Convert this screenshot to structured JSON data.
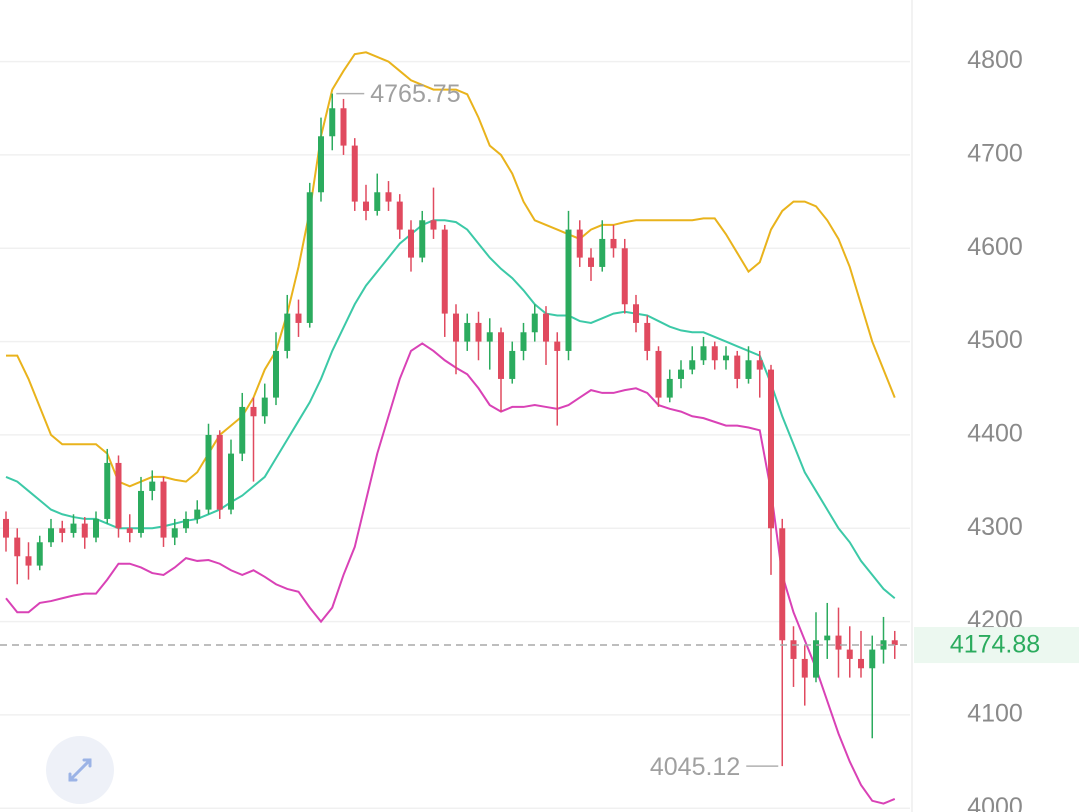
{
  "chart_data": {
    "type": "candlestick",
    "ylim": [
      3996,
      4866
    ],
    "yticks": [
      4000,
      4100,
      4200,
      4300,
      4400,
      4500,
      4600,
      4700,
      4800
    ],
    "grid": true,
    "up_color": "#2bab5e",
    "down_color": "#e04a5f",
    "candles": [
      [
        4310,
        4318,
        4275,
        4290
      ],
      [
        4290,
        4300,
        4240,
        4270
      ],
      [
        4270,
        4285,
        4245,
        4260
      ],
      [
        4260,
        4292,
        4255,
        4285
      ],
      [
        4285,
        4310,
        4280,
        4300
      ],
      [
        4300,
        4308,
        4285,
        4295
      ],
      [
        4295,
        4315,
        4290,
        4305
      ],
      [
        4305,
        4312,
        4278,
        4290
      ],
      [
        4290,
        4318,
        4285,
        4310
      ],
      [
        4310,
        4385,
        4305,
        4370
      ],
      [
        4370,
        4378,
        4290,
        4300
      ],
      [
        4300,
        4315,
        4285,
        4295
      ],
      [
        4295,
        4355,
        4290,
        4340
      ],
      [
        4340,
        4362,
        4330,
        4350
      ],
      [
        4350,
        4355,
        4280,
        4290
      ],
      [
        4290,
        4310,
        4282,
        4300
      ],
      [
        4300,
        4318,
        4295,
        4310
      ],
      [
        4310,
        4330,
        4305,
        4320
      ],
      [
        4320,
        4412,
        4315,
        4400
      ],
      [
        4400,
        4405,
        4310,
        4320
      ],
      [
        4320,
        4395,
        4315,
        4380
      ],
      [
        4380,
        4445,
        4372,
        4430
      ],
      [
        4430,
        4440,
        4350,
        4420
      ],
      [
        4420,
        4455,
        4412,
        4440
      ],
      [
        4440,
        4510,
        4432,
        4490
      ],
      [
        4490,
        4550,
        4482,
        4530
      ],
      [
        4530,
        4545,
        4505,
        4520
      ],
      [
        4520,
        4670,
        4515,
        4660
      ],
      [
        4660,
        4740,
        4650,
        4720
      ],
      [
        4720,
        4765.75,
        4705,
        4750
      ],
      [
        4750,
        4760,
        4700,
        4710
      ],
      [
        4710,
        4718,
        4640,
        4650
      ],
      [
        4650,
        4668,
        4630,
        4640
      ],
      [
        4640,
        4680,
        4635,
        4660
      ],
      [
        4660,
        4672,
        4640,
        4650
      ],
      [
        4650,
        4658,
        4610,
        4620
      ],
      [
        4620,
        4630,
        4575,
        4590
      ],
      [
        4590,
        4640,
        4585,
        4630
      ],
      [
        4630,
        4665,
        4610,
        4620
      ],
      [
        4620,
        4625,
        4505,
        4530
      ],
      [
        4530,
        4540,
        4465,
        4500
      ],
      [
        4500,
        4530,
        4490,
        4520
      ],
      [
        4520,
        4532,
        4480,
        4500
      ],
      [
        4500,
        4525,
        4470,
        4510
      ],
      [
        4510,
        4515,
        4425,
        4460
      ],
      [
        4460,
        4500,
        4455,
        4490
      ],
      [
        4490,
        4520,
        4480,
        4510
      ],
      [
        4510,
        4540,
        4500,
        4530
      ],
      [
        4530,
        4538,
        4475,
        4500
      ],
      [
        4500,
        4510,
        4410,
        4490
      ],
      [
        4490,
        4640,
        4480,
        4620
      ],
      [
        4620,
        4630,
        4580,
        4590
      ],
      [
        4590,
        4600,
        4565,
        4580
      ],
      [
        4580,
        4630,
        4575,
        4610
      ],
      [
        4610,
        4625,
        4590,
        4600
      ],
      [
        4600,
        4610,
        4530,
        4540
      ],
      [
        4540,
        4550,
        4510,
        4520
      ],
      [
        4520,
        4528,
        4480,
        4490
      ],
      [
        4490,
        4495,
        4430,
        4440
      ],
      [
        4440,
        4470,
        4435,
        4460
      ],
      [
        4460,
        4480,
        4450,
        4470
      ],
      [
        4470,
        4495,
        4465,
        4480
      ],
      [
        4480,
        4505,
        4475,
        4495
      ],
      [
        4495,
        4500,
        4470,
        4480
      ],
      [
        4480,
        4495,
        4470,
        4485
      ],
      [
        4485,
        4490,
        4450,
        4460
      ],
      [
        4460,
        4495,
        4455,
        4480
      ],
      [
        4480,
        4490,
        4440,
        4470
      ],
      [
        4470,
        4475,
        4250,
        4300
      ],
      [
        4300,
        4310,
        4045.12,
        4180
      ],
      [
        4180,
        4195,
        4130,
        4160
      ],
      [
        4160,
        4175,
        4110,
        4140
      ],
      [
        4140,
        4210,
        4135,
        4180
      ],
      [
        4180,
        4220,
        4160,
        4185
      ],
      [
        4185,
        4215,
        4140,
        4170
      ],
      [
        4170,
        4195,
        4140,
        4160
      ],
      [
        4160,
        4190,
        4140,
        4150
      ],
      [
        4150,
        4185,
        4075,
        4170
      ],
      [
        4170,
        4205,
        4155,
        4180
      ],
      [
        4180,
        4190,
        4160,
        4174.88
      ]
    ],
    "bands": [
      {
        "color": "#e9b31c",
        "values": [
          4485,
          4485,
          4460,
          4430,
          4400,
          4390,
          4390,
          4390,
          4390,
          4380,
          4350,
          4345,
          4350,
          4355,
          4355,
          4352,
          4350,
          4360,
          4380,
          4400,
          4410,
          4420,
          4440,
          4470,
          4490,
          4530,
          4580,
          4640,
          4720,
          4770,
          4790,
          4808,
          4810,
          4805,
          4800,
          4790,
          4780,
          4775,
          4770,
          4770,
          4770,
          4765,
          4740,
          4710,
          4700,
          4680,
          4650,
          4630,
          4625,
          4620,
          4615,
          4610,
          4620,
          4625,
          4625,
          4628,
          4630,
          4630,
          4630,
          4630,
          4630,
          4630,
          4632,
          4632,
          4615,
          4595,
          4575,
          4585,
          4620,
          4640,
          4650,
          4650,
          4645,
          4630,
          4610,
          4580,
          4540,
          4500,
          4470,
          4440
        ]
      },
      {
        "color": "#3cc9a7",
        "values": [
          4355,
          4350,
          4340,
          4330,
          4320,
          4315,
          4312,
          4310,
          4310,
          4305,
          4300,
          4300,
          4300,
          4300,
          4302,
          4305,
          4308,
          4310,
          4315,
          4320,
          4328,
          4335,
          4345,
          4355,
          4375,
          4395,
          4415,
          4435,
          4460,
          4490,
          4515,
          4540,
          4560,
          4575,
          4590,
          4605,
          4615,
          4625,
          4630,
          4630,
          4628,
          4620,
          4605,
          4590,
          4578,
          4568,
          4555,
          4540,
          4530,
          4528,
          4528,
          4522,
          4520,
          4525,
          4530,
          4532,
          4530,
          4528,
          4522,
          4516,
          4512,
          4510,
          4510,
          4505,
          4500,
          4495,
          4490,
          4485,
          4455,
          4420,
          4390,
          4360,
          4340,
          4320,
          4300,
          4285,
          4265,
          4250,
          4235,
          4225
        ]
      },
      {
        "color": "#d942b6",
        "values": [
          4225,
          4210,
          4210,
          4220,
          4222,
          4225,
          4228,
          4230,
          4230,
          4245,
          4262,
          4262,
          4258,
          4252,
          4250,
          4258,
          4268,
          4265,
          4266,
          4262,
          4255,
          4250,
          4255,
          4248,
          4240,
          4235,
          4232,
          4215,
          4200,
          4215,
          4250,
          4280,
          4330,
          4380,
          4420,
          4460,
          4490,
          4498,
          4490,
          4480,
          4472,
          4465,
          4450,
          4432,
          4425,
          4430,
          4430,
          4432,
          4430,
          4428,
          4432,
          4440,
          4448,
          4445,
          4445,
          4448,
          4450,
          4445,
          4432,
          4428,
          4425,
          4420,
          4418,
          4414,
          4410,
          4410,
          4408,
          4405,
          4340,
          4250,
          4210,
          4180,
          4150,
          4115,
          4080,
          4050,
          4025,
          4008,
          4005,
          4010
        ]
      }
    ]
  }
}
